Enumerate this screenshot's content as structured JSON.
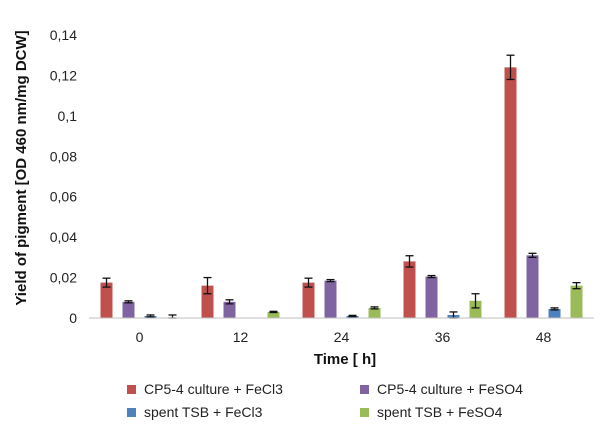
{
  "chart_data": {
    "type": "bar",
    "title": "",
    "xlabel": "Time [ h]",
    "ylabel": "Yield of pigment [OD 460 nm/mg DCW]",
    "categories": [
      "0",
      "12",
      "24",
      "36",
      "48"
    ],
    "ylim": [
      0,
      0.14
    ],
    "yticks": [
      0,
      0.02,
      0.04,
      0.06,
      0.08,
      0.1,
      0.12,
      0.14
    ],
    "ytick_labels": [
      "0",
      "0,02",
      "0,04",
      "0,06",
      "0,08",
      "0,1",
      "0,12",
      "0,14"
    ],
    "grid": false,
    "legend_position": "bottom",
    "series": [
      {
        "name": "CP5-4 culture + FeCl3",
        "color": "#c0504d",
        "values": [
          0.0175,
          0.016,
          0.0175,
          0.028,
          0.124
        ],
        "errors": [
          0.0022,
          0.004,
          0.0022,
          0.0028,
          0.006
        ]
      },
      {
        "name": "CP5-4 culture + FeSO4",
        "color": "#8064a2",
        "values": [
          0.008,
          0.008,
          0.0185,
          0.0205,
          0.031
        ],
        "errors": [
          0.0005,
          0.001,
          0.0005,
          0.0005,
          0.001
        ]
      },
      {
        "name": "spent TSB + FeCl3",
        "color": "#4f81bd",
        "values": [
          0.001,
          0.0,
          0.001,
          0.0015,
          0.0045
        ],
        "errors": [
          0.0005,
          0.0,
          0.0003,
          0.0015,
          0.0005
        ]
      },
      {
        "name": "spent TSB + FeSO4",
        "color": "#9bbb59",
        "values": [
          0.0,
          0.003,
          0.005,
          0.0085,
          0.016
        ],
        "errors": [
          0.0015,
          0.0003,
          0.0005,
          0.0035,
          0.0015
        ]
      }
    ]
  }
}
